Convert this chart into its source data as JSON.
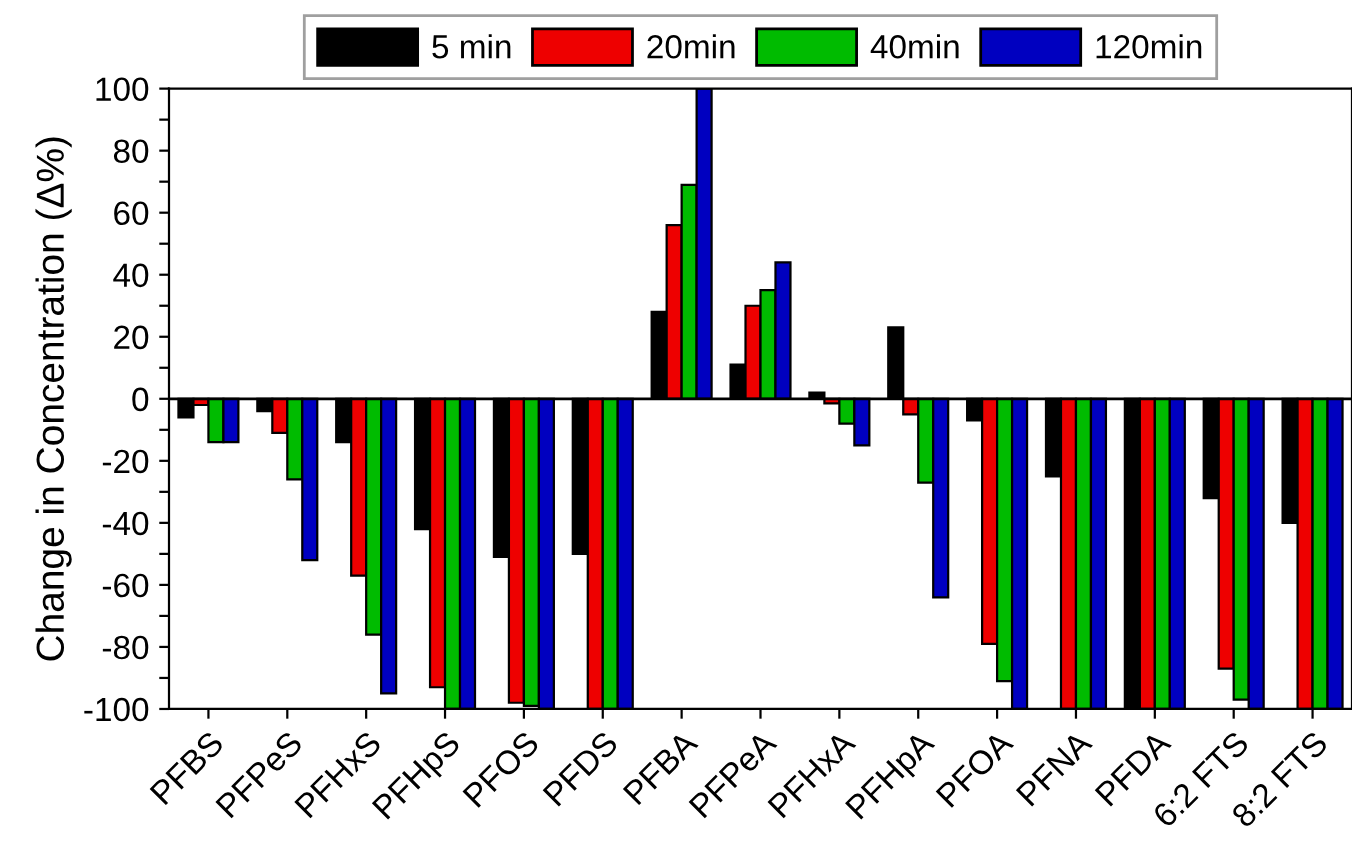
{
  "chart_data": {
    "type": "bar",
    "ylabel": "Change in Concentration (Δ%)",
    "categories": [
      "PFBS",
      "PFPeS",
      "PFHxS",
      "PFHpS",
      "PFOS",
      "PFDS",
      "PFBA",
      "PFPeA",
      "PFHxA",
      "PFHpA",
      "PFOA",
      "PFNA",
      "PFDA",
      "6:2 FTS",
      "8:2 FTS"
    ],
    "series": [
      {
        "name": "5 min",
        "color": "#000000",
        "values": [
          -6,
          -4,
          -14,
          -42,
          -51,
          -50,
          28,
          11,
          2,
          23,
          -7,
          -25,
          -100,
          -32,
          -40
        ]
      },
      {
        "name": "20min",
        "color": "#ee0000",
        "values": [
          -2,
          -11,
          -57,
          -93,
          -98,
          -100,
          56,
          30,
          -1.5,
          -5,
          -79,
          -100,
          -100,
          -87,
          -100
        ]
      },
      {
        "name": "40min",
        "color": "#00bb00",
        "values": [
          -14,
          -26,
          -76,
          -100,
          -99,
          -100,
          69,
          35,
          -8,
          -27,
          -91,
          -100,
          -100,
          -97,
          -100
        ]
      },
      {
        "name": "120min",
        "color": "#0000c0",
        "values": [
          -14,
          -52,
          -95,
          -100,
          -100,
          -100,
          100,
          44,
          -15,
          -64,
          -100,
          -100,
          -100,
          -100,
          -100
        ]
      }
    ],
    "ylim": [
      -100,
      100
    ],
    "yticks": [
      -100,
      {
        "value": -90,
        "label": null
      },
      -80,
      {
        "value": -70,
        "label": null
      },
      -60,
      {
        "value": -50,
        "label": null
      },
      -40,
      {
        "value": -30,
        "label": null
      },
      -20,
      {
        "value": -10,
        "label": null
      },
      0,
      {
        "value": 10,
        "label": null
      },
      20,
      {
        "value": 30,
        "label": null
      },
      40,
      {
        "value": 50,
        "label": null
      },
      60,
      {
        "value": 70,
        "label": null
      },
      80,
      {
        "value": 90,
        "label": null
      },
      100
    ],
    "ref_lines": [
      {
        "axis": "y",
        "value": 0,
        "color": "#000000"
      }
    ],
    "legend": "top"
  }
}
